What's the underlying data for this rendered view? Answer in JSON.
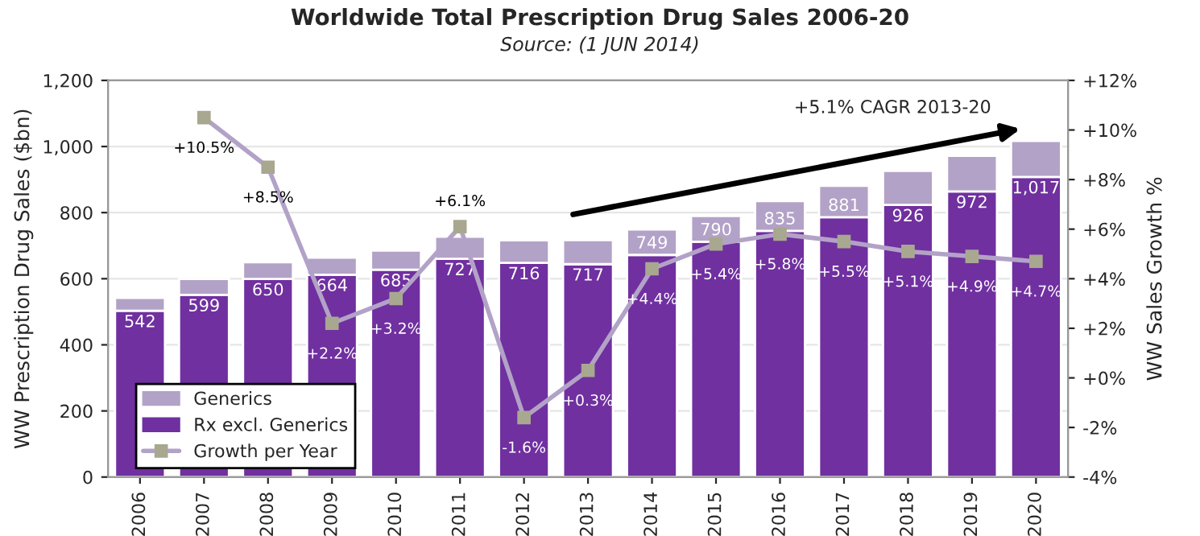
{
  "chart_data": {
    "type": "bar",
    "title": "Worldwide Total Prescription Drug Sales 2006-20",
    "subtitle": "Source: (1 JUN 2014)",
    "categories": [
      "2006",
      "2007",
      "2008",
      "2009",
      "2010",
      "2011",
      "2012",
      "2013",
      "2014",
      "2015",
      "2016",
      "2017",
      "2018",
      "2019",
      "2020"
    ],
    "stacked": true,
    "series": [
      {
        "name": "Rx excl. Generics",
        "color": "#7030a0",
        "values": [
          503,
          551,
          599,
          612,
          627,
          660,
          648,
          644,
          672,
          712,
          745,
          786,
          823,
          864,
          908
        ]
      },
      {
        "name": "Generics",
        "color": "#b3a2c7",
        "values": [
          39,
          48,
          51,
          52,
          58,
          67,
          68,
          73,
          77,
          78,
          90,
          95,
          103,
          108,
          109
        ]
      },
      {
        "name": "Growth per Year",
        "type": "line",
        "axis": "y2",
        "color": "#b3a2c7",
        "marker": "square",
        "values": [
          null,
          10.5,
          8.5,
          2.2,
          3.2,
          6.1,
          -1.6,
          0.3,
          4.4,
          5.4,
          5.8,
          5.5,
          5.1,
          4.9,
          4.7
        ],
        "value_labels": [
          null,
          "+10.5%",
          "+8.5%",
          "+2.2%",
          "+3.2%",
          "+6.1%",
          "-1.6%",
          "+0.3%",
          "+4.4%",
          "+5.4%",
          "+5.8%",
          "+5.5%",
          "+5.1%",
          "+4.9%",
          "+4.7%"
        ]
      }
    ],
    "totals": [
      "542",
      "599",
      "650",
      "664",
      "685",
      "727",
      "716",
      "717",
      "749",
      "790",
      "835",
      "881",
      "926",
      "972",
      "1,017"
    ],
    "ylabel": "WW Prescription Drug Sales ($bn)",
    "y2label": "WW Sales Growth %",
    "ylim": [
      0,
      1200
    ],
    "yticks": [
      0,
      200,
      400,
      600,
      800,
      {
        "value": 1000,
        "label": "1,000"
      },
      {
        "value": 1200,
        "label": "1,200"
      }
    ],
    "y2lim": [
      -4,
      12
    ],
    "y2ticks": [
      {
        "value": -4,
        "label": "-4%"
      },
      {
        "value": -2,
        "label": "-2%"
      },
      {
        "value": 0,
        "label": "+0%"
      },
      {
        "value": 2,
        "label": "+2%"
      },
      {
        "value": 4,
        "label": "+4%"
      },
      {
        "value": 6,
        "label": "+6%"
      },
      {
        "value": 8,
        "label": "+8%"
      },
      {
        "value": 10,
        "label": "+10%"
      },
      {
        "value": 12,
        "label": "+12%"
      }
    ],
    "grid": "y",
    "legend": "bottom left",
    "annotations": [
      "+5.1% CAGR 2013-20"
    ]
  }
}
